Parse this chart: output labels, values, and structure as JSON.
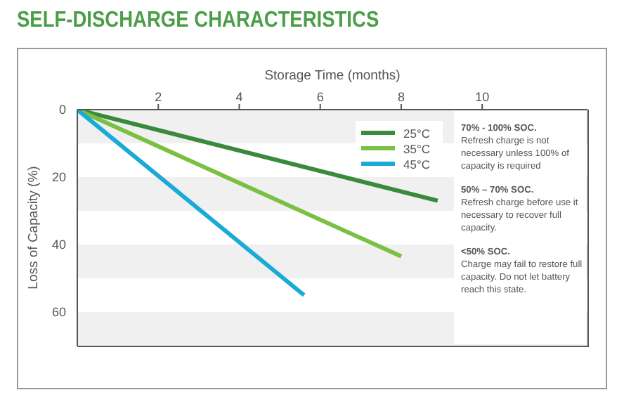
{
  "chart_data": {
    "type": "line",
    "title": "SELF-DISCHARGE CHARACTERISTICS",
    "xlabel": "Storage Time (months)",
    "ylabel": "Loss of Capacity (%)",
    "series": [
      {
        "name": "25°C",
        "color": "#3a8a3e",
        "x": [
          0,
          8.9
        ],
        "values": [
          0,
          27
        ]
      },
      {
        "name": "35°C",
        "color": "#7ac143",
        "x": [
          0,
          8
        ],
        "values": [
          0,
          43.5
        ]
      },
      {
        "name": "45°C",
        "color": "#1ba9d6",
        "x": [
          0,
          5.6
        ],
        "values": [
          0,
          55
        ]
      }
    ],
    "xlim": [
      0,
      12.6
    ],
    "xticks": [
      2,
      4,
      6,
      8,
      10
    ],
    "ylim": [
      70,
      0
    ],
    "yticks": [
      0,
      20,
      40,
      60
    ],
    "bands": [
      {
        "axis": "y",
        "from": 0,
        "to": 10,
        "color": "#f0f0f1"
      },
      {
        "axis": "y",
        "from": 20,
        "to": 30,
        "color": "#f0f0f1"
      },
      {
        "axis": "y",
        "from": 40,
        "to": 50,
        "color": "#f0f0f1"
      },
      {
        "axis": "y",
        "from": 60,
        "to": 70,
        "color": "#f0f0f1"
      }
    ],
    "annotations": [
      "70% - 100% SOC. Refresh charge is not necessary unless 100% of capacity is required",
      "50% – 70% SOC. Refresh charge before use it necessary to recover full capacity.",
      "<50% SOC. Charge may fail to restore full capacity. Do not let battery reach this state."
    ],
    "legend": "top right",
    "marker": "none",
    "line_style": "solid"
  }
}
